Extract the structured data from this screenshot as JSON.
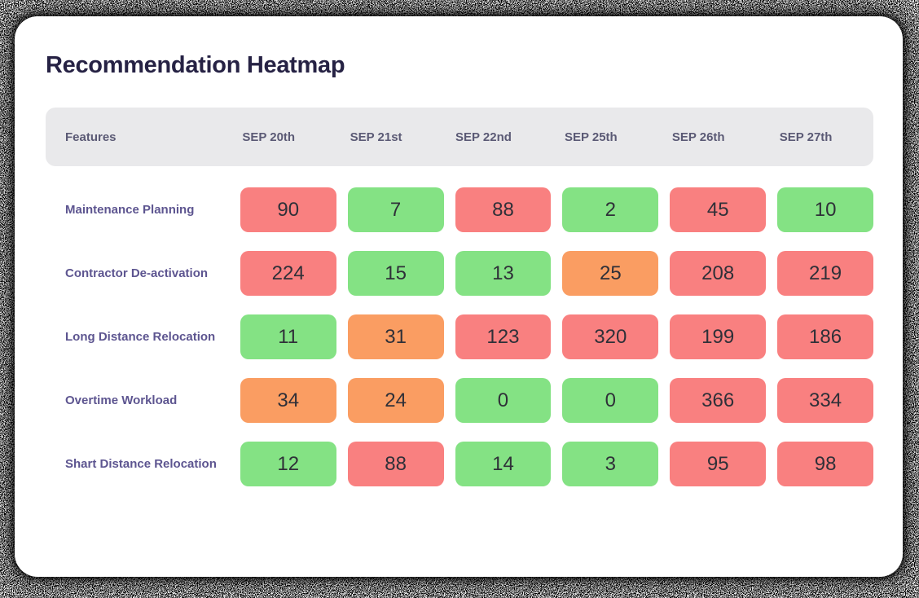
{
  "page": {
    "title": "Recommendation Heatmap"
  },
  "table": {
    "feature_header": "Features",
    "date_headers": [
      "SEP 20th",
      "SEP 21st",
      "SEP 22nd",
      "SEP 25th",
      "SEP 26th",
      "SEP 27th"
    ],
    "rows": [
      {
        "feature": "Maintenance Planning",
        "cells": [
          {
            "value": "90",
            "level": "red"
          },
          {
            "value": "7",
            "level": "green"
          },
          {
            "value": "88",
            "level": "red"
          },
          {
            "value": "2",
            "level": "green"
          },
          {
            "value": "45",
            "level": "red"
          },
          {
            "value": "10",
            "level": "green"
          }
        ]
      },
      {
        "feature": "Contractor De-activation",
        "cells": [
          {
            "value": "224",
            "level": "red"
          },
          {
            "value": "15",
            "level": "green"
          },
          {
            "value": "13",
            "level": "green"
          },
          {
            "value": "25",
            "level": "orange"
          },
          {
            "value": "208",
            "level": "red"
          },
          {
            "value": "219",
            "level": "red"
          }
        ]
      },
      {
        "feature": "Long Distance Relocation",
        "cells": [
          {
            "value": "11",
            "level": "green"
          },
          {
            "value": "31",
            "level": "orange"
          },
          {
            "value": "123",
            "level": "red"
          },
          {
            "value": "320",
            "level": "red"
          },
          {
            "value": "199",
            "level": "red"
          },
          {
            "value": "186",
            "level": "red"
          }
        ]
      },
      {
        "feature": "Overtime Workload",
        "cells": [
          {
            "value": "34",
            "level": "orange"
          },
          {
            "value": "24",
            "level": "orange"
          },
          {
            "value": "0",
            "level": "green"
          },
          {
            "value": "0",
            "level": "green"
          },
          {
            "value": "366",
            "level": "red"
          },
          {
            "value": "334",
            "level": "red"
          }
        ]
      },
      {
        "feature": "Shart Distance Relocation",
        "cells": [
          {
            "value": "12",
            "level": "green"
          },
          {
            "value": "88",
            "level": "red"
          },
          {
            "value": "14",
            "level": "green"
          },
          {
            "value": "3",
            "level": "green"
          },
          {
            "value": "95",
            "level": "red"
          },
          {
            "value": "98",
            "level": "red"
          }
        ]
      }
    ]
  },
  "colors": {
    "red": "#f98080",
    "orange": "#fa9d62",
    "green": "#84e284",
    "header_band": "#e9e9eb",
    "title_text": "#262244",
    "header_text": "#5b5a75",
    "label_text": "#5d5590",
    "cell_text": "#2f3038"
  },
  "chart_data": {
    "type": "heatmap",
    "title": "Recommendation Heatmap",
    "x": [
      "SEP 20th",
      "SEP 21st",
      "SEP 22nd",
      "SEP 25th",
      "SEP 26th",
      "SEP 27th"
    ],
    "y": [
      "Maintenance Planning",
      "Contractor De-activation",
      "Long Distance Relocation",
      "Overtime Workload",
      "Shart Distance Relocation"
    ],
    "values": [
      [
        90,
        7,
        88,
        2,
        45,
        10
      ],
      [
        224,
        15,
        13,
        25,
        208,
        219
      ],
      [
        11,
        31,
        123,
        320,
        199,
        186
      ],
      [
        34,
        24,
        0,
        0,
        366,
        334
      ],
      [
        12,
        88,
        14,
        3,
        95,
        98
      ]
    ],
    "cell_levels": [
      [
        "red",
        "green",
        "red",
        "green",
        "red",
        "green"
      ],
      [
        "red",
        "green",
        "green",
        "orange",
        "red",
        "red"
      ],
      [
        "green",
        "orange",
        "red",
        "red",
        "red",
        "red"
      ],
      [
        "orange",
        "orange",
        "green",
        "green",
        "red",
        "red"
      ],
      [
        "green",
        "red",
        "green",
        "green",
        "red",
        "red"
      ]
    ],
    "level_colors": {
      "red": "#f98080",
      "orange": "#fa9d62",
      "green": "#84e284"
    },
    "legend": "none",
    "grid": false
  }
}
